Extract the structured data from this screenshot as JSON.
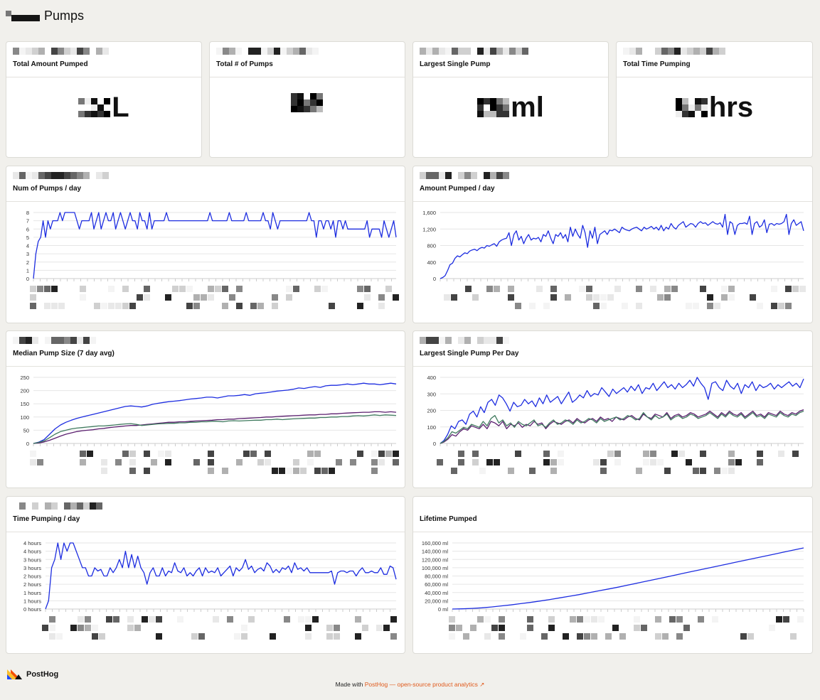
{
  "header": {
    "title": "Pumps"
  },
  "stat_cards": [
    {
      "title": "Total Amount Pumped",
      "unit": "L"
    },
    {
      "title": "Total # of Pumps",
      "unit": ""
    },
    {
      "title": "Largest Single Pump",
      "unit": "ml"
    },
    {
      "title": "Total Time Pumping",
      "unit": "hrs"
    }
  ],
  "chart_cards": [
    {
      "title": "Num of Pumps / day"
    },
    {
      "title": "Amount Pumped / day"
    },
    {
      "title": "Median Pump Size (7 day avg)"
    },
    {
      "title": "Largest Single Pump Per Day"
    },
    {
      "title": "Time Pumping / day"
    },
    {
      "title": "Lifetime Pumped"
    }
  ],
  "colors": {
    "primary": "#1d2de0",
    "secondary": "#5b1f6f",
    "tertiary": "#3f7a5e",
    "brand": "#e05a1c"
  },
  "chart_data": [
    {
      "type": "line",
      "title": "Num of Pumps / day",
      "yticks": [
        "0",
        "1",
        "2",
        "3",
        "4",
        "5",
        "6",
        "7",
        "8"
      ],
      "ylim": [
        0,
        8
      ],
      "grid": true,
      "series": [
        {
          "values": [
            0,
            3,
            4.5,
            5,
            7,
            5,
            7,
            6,
            7,
            7,
            7,
            8,
            7,
            8,
            8,
            8,
            8,
            8,
            7,
            6,
            7,
            7,
            7,
            7,
            8,
            6,
            7,
            8,
            6,
            7,
            8,
            7,
            7,
            8,
            6,
            7,
            8,
            7,
            6,
            7,
            8,
            7,
            7,
            6,
            8,
            7,
            7,
            6,
            8,
            6,
            7,
            7,
            7,
            7,
            7,
            8,
            7,
            7,
            7,
            7,
            7,
            7,
            7,
            7,
            7,
            7,
            7,
            7,
            7,
            7,
            7,
            7,
            7,
            8,
            7,
            7,
            7,
            7,
            7,
            7,
            7,
            8,
            7,
            7,
            7,
            7,
            7,
            7,
            8,
            7,
            7,
            7,
            7,
            7,
            7,
            8,
            7,
            7,
            6,
            8,
            7,
            6,
            7,
            7,
            7,
            7,
            7,
            7,
            7,
            7,
            7,
            7,
            7,
            7,
            8,
            7,
            7,
            5,
            7,
            7,
            6,
            7,
            7,
            6,
            7,
            5,
            7,
            7,
            6,
            7,
            6,
            6,
            6,
            6,
            6,
            6,
            6,
            6,
            7,
            5,
            6,
            6,
            6,
            6,
            5,
            7,
            6,
            5,
            6,
            7,
            5
          ]
        }
      ]
    },
    {
      "type": "line",
      "title": "Amount Pumped / day",
      "yticks": [
        "0",
        "400",
        "800",
        "1,200",
        "1,600"
      ],
      "ylim": [
        0,
        1800
      ],
      "grid": true,
      "series": [
        {
          "values": [
            0,
            30,
            80,
            220,
            380,
            420,
            550,
            620,
            590,
            650,
            700,
            680,
            750,
            780,
            800,
            760,
            820,
            850,
            830,
            900,
            880,
            920,
            950,
            880,
            1000,
            1050,
            1080,
            1100,
            1250,
            900,
            1200,
            1300,
            1050,
            1150,
            950,
            1100,
            1200,
            1050,
            1100,
            1080,
            1120,
            1000,
            1200,
            1150,
            1300,
            1100,
            950,
            1200,
            1150,
            1250,
            1100,
            1200,
            1000,
            1400,
            1150,
            1350,
            1200,
            1100,
            1450,
            1250,
            850,
            1300,
            1100,
            1400,
            950,
            1200,
            1250,
            1300,
            1200,
            1320,
            1300,
            1350,
            1300,
            1250,
            1400,
            1350,
            1320,
            1300,
            1350,
            1380,
            1400,
            1350,
            1300,
            1400,
            1350,
            1380,
            1420,
            1350,
            1400,
            1320,
            1450,
            1300,
            1400,
            1350,
            1500,
            1400,
            1350,
            1450,
            1500,
            1550,
            1400,
            1450,
            1500,
            1480,
            1400,
            1500,
            1550,
            1500,
            1520,
            1450,
            1500,
            1550,
            1500,
            1480,
            1520,
            1400,
            1750,
            1200,
            1550,
            1500,
            1200,
            1450,
            1500,
            1500,
            1520,
            1480,
            1700,
            1200,
            1500,
            1550,
            1400,
            1450,
            1600,
            1250,
            1480,
            1500,
            1450,
            1500,
            1480,
            1500,
            1550,
            1750,
            1200,
            1500,
            1600,
            1450,
            1500,
            1550,
            1300
          ]
        }
      ]
    },
    {
      "type": "line",
      "title": "Median Pump Size (7 day avg)",
      "yticks": [
        "0",
        "50",
        "100",
        "150",
        "200",
        "250"
      ],
      "ylim": [
        0,
        250
      ],
      "grid": true,
      "series": [
        {
          "color": "primary",
          "values": [
            0,
            5,
            15,
            35,
            55,
            70,
            80,
            88,
            95,
            100,
            105,
            110,
            115,
            120,
            125,
            130,
            135,
            140,
            142,
            140,
            138,
            142,
            148,
            152,
            155,
            158,
            160,
            162,
            165,
            168,
            170,
            172,
            175,
            175,
            172,
            176,
            180,
            180,
            182,
            185,
            182,
            188,
            190,
            192,
            195,
            198,
            200,
            202,
            205,
            210,
            208,
            212,
            215,
            212,
            218,
            220,
            220,
            222,
            225,
            222,
            225,
            228,
            225,
            225,
            222,
            225,
            228,
            225
          ]
        },
        {
          "color": "secondary",
          "values": [
            0,
            2,
            6,
            12,
            20,
            28,
            35,
            40,
            45,
            48,
            50,
            52,
            55,
            57,
            60,
            62,
            64,
            66,
            68,
            68,
            70,
            72,
            74,
            76,
            78,
            80,
            80,
            82,
            82,
            84,
            85,
            86,
            87,
            88,
            90,
            90,
            92,
            92,
            94,
            95,
            96,
            97,
            98,
            100,
            100,
            102,
            103,
            104,
            105,
            106,
            107,
            108,
            108,
            110,
            110,
            112,
            112,
            114,
            115,
            116,
            117,
            118,
            118,
            120,
            120,
            118,
            120,
            118
          ]
        },
        {
          "color": "tertiary",
          "values": [
            0,
            4,
            10,
            22,
            35,
            45,
            50,
            55,
            58,
            60,
            62,
            64,
            66,
            66,
            68,
            70,
            72,
            74,
            75,
            72,
            68,
            70,
            72,
            74,
            75,
            76,
            76,
            78,
            78,
            80,
            80,
            82,
            82,
            84,
            84,
            82,
            85,
            86,
            85,
            86,
            87,
            88,
            88,
            90,
            90,
            92,
            90,
            92,
            93,
            94,
            95,
            96,
            96,
            98,
            98,
            100,
            100,
            102,
            102,
            104,
            105,
            104,
            106,
            108,
            106,
            108,
            107,
            106
          ]
        }
      ]
    },
    {
      "type": "line",
      "title": "Largest Single Pump Per Day",
      "yticks": [
        "0",
        "100",
        "200",
        "300",
        "400"
      ],
      "ylim": [
        0,
        450
      ],
      "grid": true,
      "series": [
        {
          "color": "primary",
          "values": [
            0,
            20,
            60,
            120,
            100,
            150,
            160,
            130,
            200,
            220,
            180,
            250,
            210,
            280,
            300,
            260,
            330,
            310,
            270,
            220,
            280,
            250,
            260,
            300,
            270,
            290,
            250,
            310,
            270,
            330,
            280,
            300,
            320,
            270,
            310,
            350,
            280,
            300,
            330,
            310,
            360,
            320,
            340,
            330,
            380,
            350,
            320,
            370,
            340,
            360,
            380,
            350,
            390,
            360,
            400,
            340,
            380,
            370,
            410,
            360,
            390,
            420,
            380,
            400,
            370,
            410,
            380,
            400,
            430,
            390,
            450,
            410,
            380,
            300,
            410,
            420,
            380,
            360,
            430,
            390,
            370,
            410,
            340,
            400,
            380,
            420,
            360,
            400,
            380,
            390,
            410,
            370,
            400,
            380,
            400,
            420,
            390,
            410,
            380,
            440
          ]
        },
        {
          "color": "secondary",
          "values": [
            0,
            10,
            30,
            60,
            50,
            80,
            100,
            90,
            120,
            110,
            100,
            130,
            100,
            150,
            140,
            120,
            150,
            100,
            130,
            120,
            140,
            110,
            130,
            120,
            150,
            130,
            140,
            100,
            130,
            150,
            140,
            130,
            150,
            160,
            140,
            170,
            150,
            140,
            160,
            170,
            150,
            180,
            160,
            170,
            150,
            180,
            170,
            160,
            180,
            190,
            170,
            160,
            200,
            180,
            170,
            200,
            190,
            180,
            210,
            170,
            190,
            200,
            180,
            190,
            210,
            200,
            180,
            190,
            200,
            220,
            200,
            180,
            210,
            190,
            220,
            200,
            190,
            210,
            180,
            200,
            220,
            190,
            200,
            180,
            210,
            200,
            190,
            220,
            200,
            190,
            210,
            200,
            220,
            230
          ]
        },
        {
          "color": "tertiary",
          "values": [
            0,
            15,
            40,
            80,
            70,
            90,
            110,
            100,
            130,
            120,
            110,
            150,
            120,
            170,
            190,
            140,
            160,
            120,
            140,
            110,
            150,
            130,
            120,
            140,
            160,
            120,
            130,
            110,
            140,
            160,
            130,
            140,
            160,
            150,
            130,
            160,
            140,
            150,
            170,
            160,
            140,
            170,
            150,
            160,
            170,
            180,
            160,
            170,
            190,
            180,
            160,
            170,
            210,
            180,
            160,
            190,
            170,
            180,
            200,
            160,
            180,
            190,
            170,
            180,
            200,
            190,
            170,
            180,
            190,
            210,
            190,
            170,
            200,
            180,
            210,
            190,
            180,
            200,
            170,
            190,
            210,
            180,
            190,
            170,
            200,
            190,
            180,
            210,
            190,
            180,
            200,
            190,
            210,
            220
          ]
        }
      ]
    },
    {
      "type": "line",
      "title": "Time Pumping / day",
      "yticks": [
        "0 hours",
        "1 hours",
        "1 hours",
        "2 hours",
        "2 hours",
        "3 hours",
        "3 hours",
        "4 hours",
        "4 hours"
      ],
      "ylim": [
        0,
        4
      ],
      "grid": true,
      "series": [
        {
          "values": [
            0,
            0.5,
            2.5,
            3,
            4,
            3,
            4,
            3.5,
            4,
            4,
            3.5,
            3,
            2.5,
            2.5,
            2,
            2,
            2.5,
            2.3,
            2.4,
            2,
            2,
            2.5,
            2.2,
            2.5,
            3,
            2.5,
            3.5,
            2.5,
            3.3,
            2.5,
            3.2,
            2.5,
            2.2,
            1.5,
            2.2,
            2.5,
            2,
            2,
            2.5,
            2,
            2.3,
            2.2,
            2.8,
            2.3,
            2.2,
            2.5,
            2,
            2.2,
            2,
            2.3,
            2.5,
            2,
            2.5,
            2.2,
            2.3,
            2.2,
            2.5,
            2,
            2.2,
            2.4,
            2.6,
            2,
            2.5,
            2.3,
            2.5,
            3,
            2.4,
            2.6,
            2.2,
            2.4,
            2.5,
            2.3,
            2.8,
            2.6,
            2.2,
            2.4,
            2.2,
            2.5,
            2.4,
            2.6,
            2.2,
            2.8,
            2.4,
            2.5,
            2.3,
            2.5,
            2.2,
            2.2,
            2.2,
            2.2,
            2.2,
            2.2,
            2.2,
            2.3,
            1.5,
            2.2,
            2.3,
            2.3,
            2.2,
            2.3,
            2.3,
            2,
            2.3,
            2.5,
            2.2,
            2.2,
            2.3,
            2.2,
            2.2,
            2.5,
            2.1,
            2.1,
            2.6,
            2.5,
            1.8
          ]
        }
      ]
    },
    {
      "type": "line",
      "title": "Lifetime Pumped",
      "yticks": [
        "0 ml",
        "20,000 ml",
        "40,000 ml",
        "60,000 ml",
        "80,000 ml",
        "100,000 ml",
        "120,000 ml",
        "140,000 ml",
        "160,000 ml"
      ],
      "ylim": [
        0,
        160000
      ],
      "grid": true,
      "series": [
        {
          "values": [
            0,
            500,
            1500,
            3000,
            5000,
            7500,
            10000,
            13000,
            16000,
            19500,
            23000,
            27000,
            31000,
            35000,
            39500,
            44000,
            48500,
            53000,
            58000,
            63000,
            68000,
            73000,
            78000,
            83000,
            88000,
            93000,
            98000,
            103000,
            108000,
            113000,
            118000,
            123000,
            128000,
            133000,
            138000,
            143000,
            148000
          ]
        }
      ]
    }
  ],
  "footer": {
    "brand": "PostHog",
    "made_with": "Made with",
    "link_text": "PostHog — open-source product analytics",
    "link_icon": "external-link-icon"
  }
}
